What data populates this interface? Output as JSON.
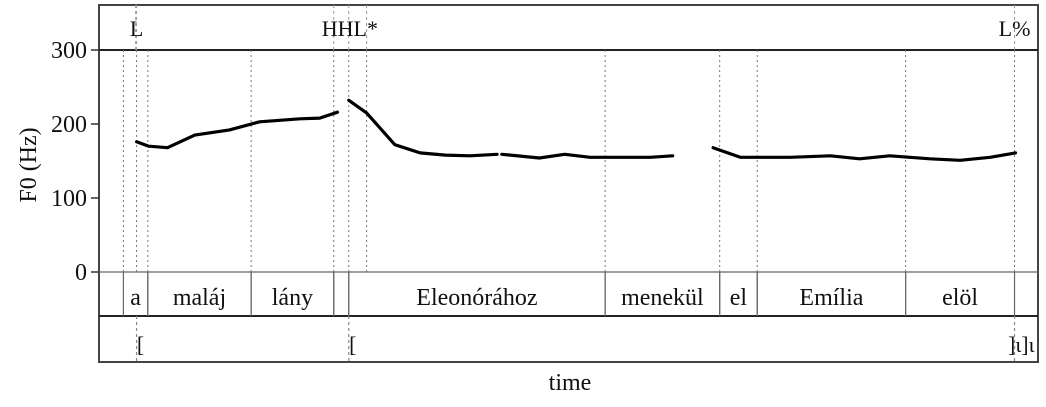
{
  "chart_data": {
    "type": "line",
    "ylabel": "F0 (Hz)",
    "xlabel": "time",
    "ylim": [
      0,
      300
    ],
    "yticks": [
      "0",
      "100",
      "200",
      "300"
    ],
    "xlim": [
      0,
      100
    ],
    "grid": false,
    "line_color": "#000000",
    "series": [
      {
        "segments": [
          [
            [
              4,
              176
            ],
            [
              5.3,
              170
            ],
            [
              7.3,
              168
            ],
            [
              10.2,
              185
            ],
            [
              13.9,
              192
            ],
            [
              17.1,
              203
            ],
            [
              21.4,
              207
            ],
            [
              23.5,
              208
            ],
            [
              25.4,
              216
            ]
          ],
          [
            [
              26.6,
              232
            ],
            [
              28.5,
              215
            ],
            [
              31.5,
              172
            ],
            [
              34.2,
              161
            ],
            [
              36.9,
              158
            ],
            [
              39.5,
              157
            ],
            [
              42.4,
              159
            ]
          ],
          [
            [
              42.9,
              159
            ],
            [
              46.9,
              154
            ],
            [
              49.6,
              159
            ],
            [
              52.3,
              155
            ],
            [
              55.5,
              155
            ],
            [
              58.7,
              155
            ],
            [
              61.1,
              157
            ]
          ],
          [
            [
              65.4,
              168
            ],
            [
              68.3,
              155
            ],
            [
              73.6,
              155
            ],
            [
              77.9,
              157
            ],
            [
              81.0,
              153
            ],
            [
              84.2,
              157
            ],
            [
              88.5,
              153
            ],
            [
              91.7,
              151
            ],
            [
              94.9,
              155
            ],
            [
              97.6,
              161
            ]
          ]
        ]
      }
    ],
    "tiers": {
      "tones": [
        {
          "label": "L",
          "t": 4
        },
        {
          "label": "HHL*",
          "t": 26.6
        },
        {
          "label": "L%",
          "t": 97.5
        }
      ],
      "tone_lines": [
        3.9,
        4,
        25.0,
        26.6,
        28.5,
        97.5
      ],
      "words": [
        {
          "label": "a",
          "start": 2.6,
          "end": 5.2
        },
        {
          "label": "maláj",
          "start": 5.2,
          "end": 16.2
        },
        {
          "label": "lány",
          "start": 16.2,
          "end": 25.0
        },
        {
          "label": "",
          "start": 25.0,
          "end": 26.6
        },
        {
          "label": "Eleonórához",
          "start": 26.6,
          "end": 53.9
        },
        {
          "label": "menekül",
          "start": 53.9,
          "end": 66.1
        },
        {
          "label": "el",
          "start": 66.1,
          "end": 70.1
        },
        {
          "label": "Emília",
          "start": 70.1,
          "end": 85.9
        },
        {
          "label": "elöl",
          "start": 85.9,
          "end": 97.5
        }
      ],
      "phrases": [
        {
          "label": "[",
          "t": 4
        },
        {
          "label": "[",
          "t": 26.6
        },
        {
          "label": "]ι]ι",
          "t": 97.5
        }
      ],
      "dotted_lines": [
        2.6,
        4,
        5.2,
        16.2,
        25.0,
        26.6,
        28.5,
        53.9,
        66.1,
        70.1,
        85.9,
        97.5
      ]
    }
  }
}
